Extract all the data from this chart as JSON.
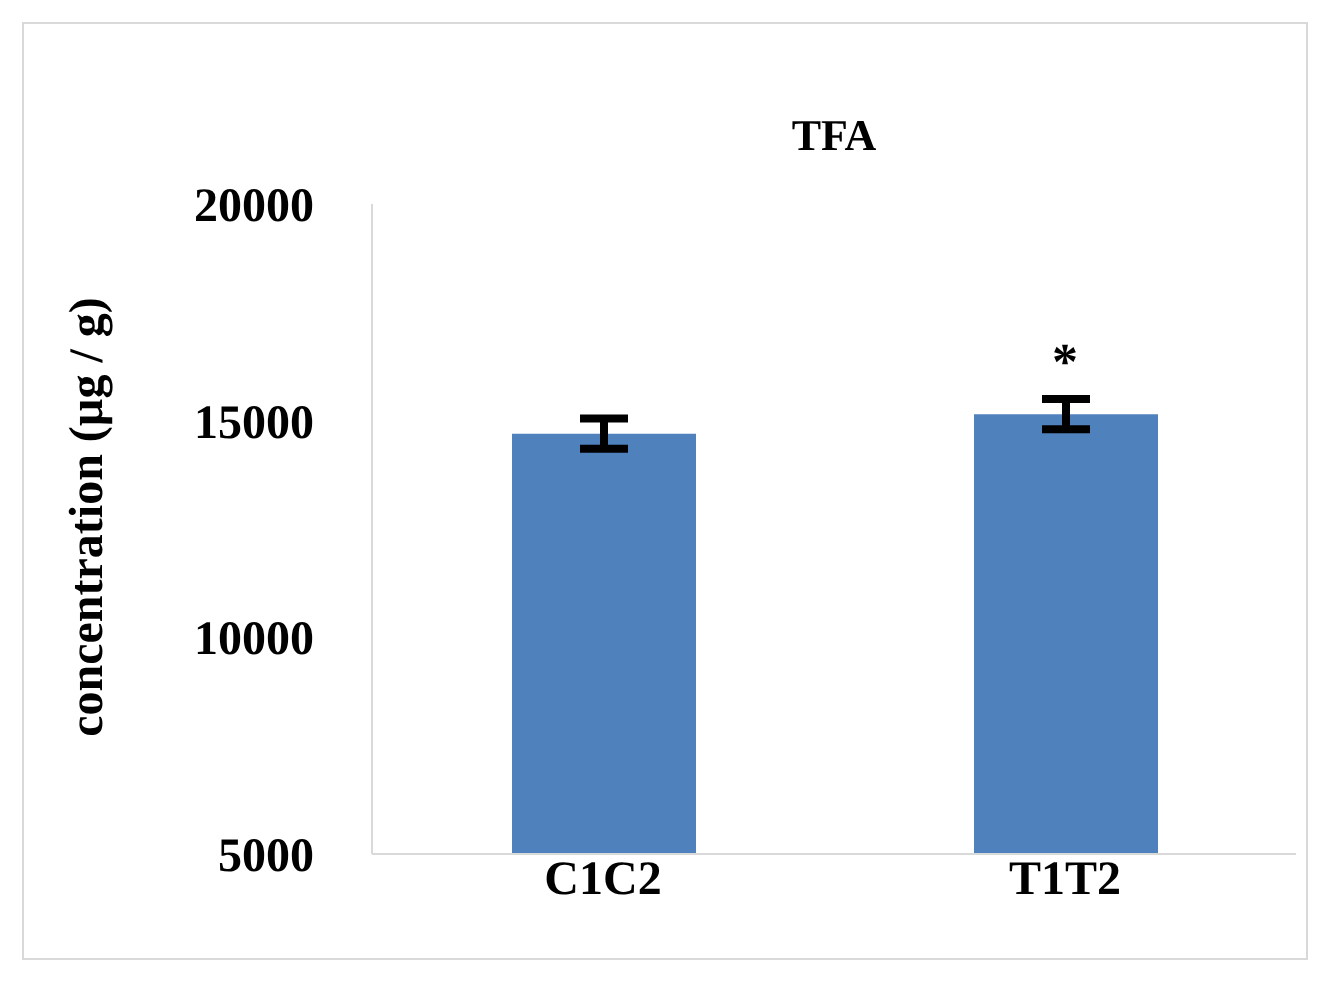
{
  "chart_data": {
    "type": "bar",
    "title": "TFA",
    "ylabel": "concentration (µg / g)",
    "categories": [
      "C1C2",
      "T1T2"
    ],
    "values": [
      14700,
      15150
    ],
    "errors": [
      350,
      350
    ],
    "color": "#4f81bd",
    "ylim": [
      5000,
      20000
    ],
    "yticks": [
      5000,
      10000,
      15000,
      20000
    ],
    "annotations": [
      {
        "text": "*",
        "x": "T1T2",
        "y": 15150
      }
    ]
  }
}
